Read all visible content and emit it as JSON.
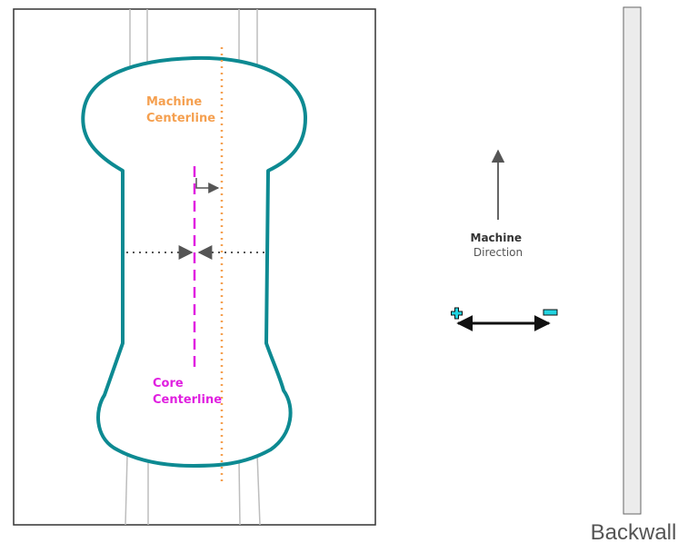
{
  "labels": {
    "machine_centerline": [
      "Machine",
      "Centerline"
    ],
    "core_centerline": [
      "Core",
      "Centerline"
    ],
    "machine_direction": [
      "Machine",
      "Direction"
    ],
    "backwall": "Backwall",
    "plus_sign": "+",
    "minus_sign": "−"
  },
  "colors": {
    "pad_outline": "#0d8a92",
    "machine_centerline": "#f5a050",
    "core_centerline": "#e020e0",
    "arrow": "#555555",
    "sign_fill": "#22d3e0",
    "backwall_fill": "#ececec",
    "frame": "#333333",
    "guide_lines": "#bdbdbd"
  }
}
